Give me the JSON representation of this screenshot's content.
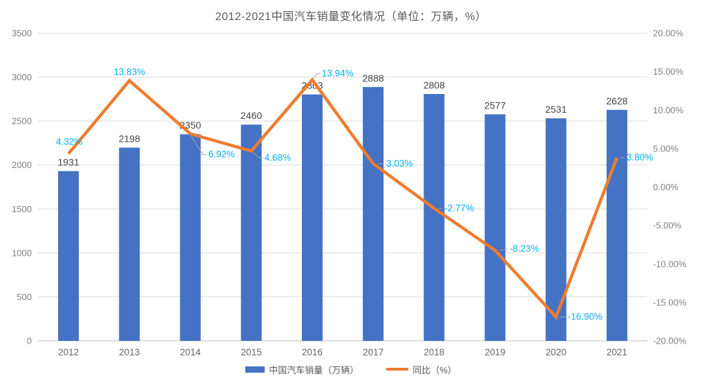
{
  "title": "2012-2021中国汽车销量变化情况（单位：万辆，%）",
  "legend": {
    "items": [
      {
        "label": "中国汽车销量（万辆）",
        "swatch": "bar-swatch"
      },
      {
        "label": "同比（%）",
        "swatch": "line-swatch"
      }
    ]
  },
  "colors": {
    "bar": "#4472C4",
    "line": "#ED7D31",
    "percent_label": "#00B0F0",
    "bar_label": "#444444",
    "axis_text": "#808080",
    "category_text": "#666666",
    "title_text": "#595959",
    "gridline": "#D9D9D9",
    "axis_line": "#BFBFBF",
    "leader": "#A6A6A6"
  },
  "chart_data": {
    "type": "bar+line",
    "title": "2012-2021中国汽车销量变化情况（单位：万辆，%）",
    "categories": [
      "2012",
      "2013",
      "2014",
      "2015",
      "2016",
      "2017",
      "2018",
      "2019",
      "2020",
      "2021"
    ],
    "series": [
      {
        "name": "中国汽车销量（万辆）",
        "type": "bar",
        "axis": "left",
        "color": "#4472C4",
        "values": [
          1931,
          2198,
          2350,
          2460,
          2803,
          2888,
          2808,
          2577,
          2531,
          2628
        ],
        "point_labels": [
          "1931",
          "2198",
          "2350",
          "2460",
          "2803",
          "2888",
          "2808",
          "2577",
          "2531",
          "2628"
        ]
      },
      {
        "name": "同比（%）",
        "type": "line",
        "axis": "right",
        "color": "#ED7D31",
        "values": [
          4.32,
          13.83,
          6.92,
          4.68,
          13.94,
          3.03,
          -2.77,
          -8.23,
          -16.9,
          3.8
        ],
        "point_labels": [
          "4.32%",
          "13.83%",
          "6.92%",
          "4.68%",
          "13.94%",
          "3.03%",
          "-2.77%",
          "-8.23%",
          "-16.90%",
          "3.80%"
        ]
      }
    ],
    "left_axis": {
      "min": 0,
      "max": 3500,
      "step": 500,
      "tick_labels": [
        "3500",
        "3000",
        "2500",
        "2000",
        "1500",
        "1000",
        "500",
        "0"
      ]
    },
    "right_axis": {
      "min": -20,
      "max": 20,
      "step": 5,
      "tick_labels": [
        "20.00%",
        "15.00%",
        "10.00%",
        "5.00%",
        "0.00%",
        "-5.00%",
        "-10.00%",
        "-15.00%",
        "-20.00%"
      ]
    },
    "grid": true,
    "legend_position": "bottom"
  }
}
